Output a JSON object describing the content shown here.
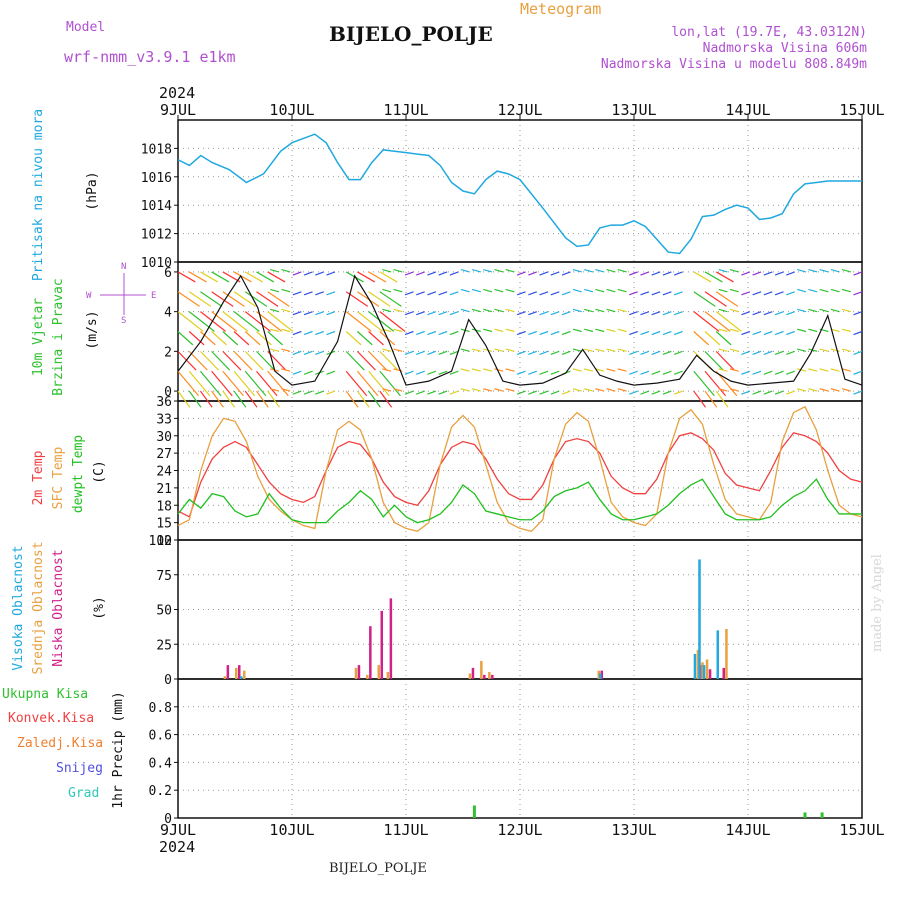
{
  "header": {
    "model_label": "Model",
    "model_name": "wrf-nmm_v3.9.1  e1km",
    "title": "Meteogram",
    "station": "BIJELO_POLJE",
    "coords": "lon,lat (19.7E, 43.0312N)",
    "elevation": "Nadmorska Visina 606m",
    "model_elevation": "Nadmorska Visina u modelu 808.849m",
    "year_top": "2024",
    "year_bottom": "2024",
    "station_footer": "BIJELO_POLJE",
    "credit": "made by Angel"
  },
  "colors": {
    "pressure": "#20a8e0",
    "wind_label": "#30c030",
    "temp_2m": "#f04040",
    "temp_sfc": "#e8a040",
    "dewpoint": "#20c020",
    "cloud_high": "#20a8e0",
    "cloud_mid": "#e8a040",
    "cloud_low": "#d0208a",
    "precip_total": "#30c030",
    "precip_conv": "#f04040",
    "precip_strat": "#f08030",
    "precip_snow": "#5050e0",
    "precip_graupel": "#30c8b8"
  },
  "chart_data": [
    {
      "type": "line",
      "panel": "pressure",
      "ylabel_parts": [
        "Pritisak na nivou mora",
        "(hPa)"
      ],
      "ylim": [
        1010,
        1020
      ],
      "yticks": [
        1010,
        1012,
        1014,
        1016,
        1018
      ],
      "x_days": [
        "9JUL",
        "10JUL",
        "11JUL",
        "12JUL",
        "13JUL",
        "14JUL",
        "15JUL"
      ],
      "x": [
        0,
        0.1,
        0.2,
        0.3,
        0.45,
        0.6,
        0.75,
        0.9,
        1.0,
        1.1,
        1.2,
        1.3,
        1.4,
        1.5,
        1.6,
        1.7,
        1.8,
        1.9,
        2.0,
        2.1,
        2.2,
        2.3,
        2.4,
        2.5,
        2.6,
        2.7,
        2.8,
        2.9,
        3.0,
        3.2,
        3.4,
        3.5,
        3.6,
        3.7,
        3.8,
        3.9,
        4.0,
        4.1,
        4.2,
        4.3,
        4.4,
        4.5,
        4.6,
        4.7,
        4.8,
        4.9,
        5.0,
        5.1,
        5.2,
        5.3,
        5.4,
        5.5,
        5.6,
        5.7,
        5.8,
        5.9,
        6.0
      ],
      "series": [
        {
          "values": [
            1017.2,
            1016.8,
            1017.5,
            1017.0,
            1016.5,
            1015.6,
            1016.2,
            1017.8,
            1018.4,
            1018.7,
            1019.0,
            1018.4,
            1017.0,
            1015.8,
            1015.8,
            1017.0,
            1017.9,
            1017.8,
            1017.7,
            1017.6,
            1017.5,
            1016.8,
            1015.6,
            1015.0,
            1014.8,
            1015.8,
            1016.4,
            1016.2,
            1015.8,
            1013.8,
            1011.7,
            1011.1,
            1011.2,
            1012.4,
            1012.6,
            1012.6,
            1012.9,
            1012.5,
            1011.6,
            1010.7,
            1010.6,
            1011.6,
            1013.2,
            1013.3,
            1013.7,
            1014.0,
            1013.8,
            1013.0,
            1013.1,
            1013.4,
            1014.8,
            1015.5,
            1015.6,
            1015.7,
            1015.7,
            1015.7,
            1015.7
          ]
        }
      ]
    },
    {
      "type": "line",
      "panel": "wind",
      "ylabel_parts": [
        "10m Vjetar",
        "Brzina i Pravac",
        "(m/s)"
      ],
      "compass_labels": [
        "N",
        "S",
        "W",
        "E"
      ],
      "ylim": [
        -0.5,
        6.5
      ],
      "yticks": [
        0,
        2,
        4,
        6
      ],
      "x": [
        0,
        0.2,
        0.4,
        0.55,
        0.7,
        0.85,
        1.0,
        1.2,
        1.4,
        1.55,
        1.7,
        1.85,
        2.0,
        2.2,
        2.4,
        2.55,
        2.7,
        2.85,
        3.0,
        3.2,
        3.4,
        3.55,
        3.7,
        3.85,
        4.0,
        4.2,
        4.4,
        4.55,
        4.7,
        4.85,
        5.0,
        5.2,
        5.4,
        5.55,
        5.7,
        5.85,
        6.0
      ],
      "series": [
        {
          "values": [
            1.0,
            2.5,
            4.5,
            5.8,
            4.2,
            1.0,
            0.3,
            0.5,
            2.5,
            5.8,
            4.4,
            2.5,
            0.3,
            0.5,
            1.0,
            3.6,
            2.3,
            0.5,
            0.3,
            0.4,
            0.9,
            2.1,
            0.8,
            0.5,
            0.3,
            0.4,
            0.6,
            1.8,
            1.0,
            0.5,
            0.3,
            0.4,
            0.5,
            1.9,
            3.8,
            0.6,
            0.3
          ]
        }
      ]
    },
    {
      "type": "line",
      "panel": "temperature",
      "ylabel_parts": [
        "2m Temp",
        "SFC Temp",
        "dewpt Temp",
        "(C)"
      ],
      "ylim": [
        12,
        36
      ],
      "yticks": [
        12,
        15,
        18,
        21,
        24,
        27,
        30,
        33,
        36
      ],
      "x": [
        0,
        0.1,
        0.2,
        0.3,
        0.4,
        0.5,
        0.6,
        0.7,
        0.8,
        0.9,
        1.0,
        1.1,
        1.2,
        1.3,
        1.4,
        1.5,
        1.6,
        1.7,
        1.8,
        1.9,
        2.0,
        2.1,
        2.2,
        2.3,
        2.4,
        2.5,
        2.6,
        2.7,
        2.8,
        2.9,
        3.0,
        3.1,
        3.2,
        3.3,
        3.4,
        3.5,
        3.6,
        3.7,
        3.8,
        3.9,
        4.0,
        4.1,
        4.2,
        4.3,
        4.4,
        4.5,
        4.6,
        4.7,
        4.8,
        4.9,
        5.0,
        5.1,
        5.2,
        5.3,
        5.4,
        5.5,
        5.6,
        5.7,
        5.8,
        5.9,
        6.0
      ],
      "series": [
        {
          "name": "2m Temp",
          "values": [
            17.0,
            16.0,
            22.0,
            26.0,
            28.0,
            29.0,
            28.0,
            25.0,
            22.0,
            20.0,
            19.0,
            18.5,
            19.5,
            24.0,
            28.0,
            29.0,
            28.5,
            26.0,
            22.0,
            19.5,
            18.5,
            18.0,
            20.5,
            25.0,
            28.0,
            29.0,
            28.5,
            26.0,
            22.5,
            20.0,
            19.0,
            19.0,
            21.5,
            26.0,
            29.0,
            29.5,
            29.0,
            27.0,
            23.0,
            21.0,
            20.0,
            20.0,
            22.5,
            27.0,
            30.0,
            30.5,
            29.5,
            27.5,
            23.5,
            21.5,
            21.0,
            20.5,
            24.0,
            28.0,
            30.5,
            30.0,
            29.0,
            27.0,
            24.0,
            22.5,
            22.0
          ]
        },
        {
          "name": "SFC Temp",
          "values": [
            14.5,
            15.5,
            24.0,
            30.0,
            33.0,
            32.5,
            29.0,
            23.0,
            19.0,
            17.0,
            15.5,
            14.5,
            14.0,
            24.0,
            31.0,
            32.5,
            31.0,
            26.0,
            18.5,
            15.0,
            14.0,
            13.5,
            15.0,
            25.0,
            31.5,
            33.5,
            31.5,
            25.0,
            18.5,
            15.0,
            14.0,
            13.5,
            15.5,
            26.0,
            32.0,
            34.0,
            32.5,
            26.0,
            18.5,
            16.0,
            15.0,
            14.5,
            16.5,
            27.0,
            33.0,
            34.5,
            32.0,
            25.0,
            19.0,
            16.5,
            16.0,
            15.5,
            18.5,
            29.0,
            34.0,
            35.0,
            31.0,
            24.0,
            18.0,
            16.5,
            16.0
          ]
        },
        {
          "name": "dewpt Temp",
          "values": [
            16.5,
            19.0,
            17.5,
            20.0,
            19.5,
            17.0,
            16.0,
            16.5,
            20.0,
            17.5,
            15.5,
            15.0,
            15.0,
            15.0,
            17.0,
            18.5,
            20.5,
            19.0,
            16.0,
            18.0,
            16.0,
            15.0,
            15.5,
            16.5,
            18.5,
            21.5,
            20.0,
            17.0,
            16.5,
            16.0,
            15.5,
            15.5,
            17.0,
            19.5,
            20.5,
            21.0,
            22.0,
            19.0,
            16.5,
            15.5,
            15.5,
            16.0,
            16.5,
            18.0,
            20.0,
            21.5,
            22.5,
            19.5,
            16.5,
            15.5,
            15.5,
            15.5,
            16.0,
            18.0,
            19.5,
            20.5,
            22.5,
            19.0,
            16.5,
            16.5,
            16.5
          ]
        }
      ]
    },
    {
      "type": "bar",
      "panel": "clouds",
      "ylabel_parts": [
        "Visoka Oblacnost",
        "Srednja Oblacnost",
        "Niska Oblacnost",
        "(%)"
      ],
      "ylim": [
        0,
        100
      ],
      "yticks": [
        0,
        25,
        50,
        75,
        100
      ],
      "x": [
        0.4,
        0.5,
        0.57,
        1.55,
        1.65,
        1.75,
        1.83,
        2.55,
        2.65,
        2.72,
        3.68,
        3.72,
        4.55,
        4.59,
        4.63,
        4.75,
        4.8
      ],
      "series": [
        {
          "name": "Visoka Oblacnost",
          "values": [
            0,
            0,
            2,
            0,
            0,
            0,
            0,
            0,
            0,
            0,
            0,
            4,
            18,
            86,
            10,
            35,
            0
          ]
        },
        {
          "name": "Srednja Oblacnost",
          "values": [
            2,
            8,
            6,
            8,
            3,
            10,
            5,
            4,
            13,
            5,
            6,
            0,
            21,
            12,
            14,
            0,
            36
          ]
        },
        {
          "name": "Niska Oblacnost",
          "values": [
            10,
            10,
            0,
            10,
            38,
            49,
            58,
            8,
            3,
            3,
            6,
            0,
            10,
            0,
            7,
            8,
            0
          ]
        }
      ]
    },
    {
      "type": "bar",
      "panel": "precipitation",
      "ylabel_parts": [
        "1hr Precip (mm)"
      ],
      "legend": [
        "Ukupna Kisa",
        "Konvek.Kisa",
        "Zaledj.Kisa",
        "Snijeg",
        "Grad"
      ],
      "ylim": [
        0,
        1.0
      ],
      "yticks": [
        0,
        0.2,
        0.4,
        0.6,
        0.8
      ],
      "x": [
        2.6,
        5.5,
        5.65
      ],
      "series": [
        {
          "name": "Ukupna Kisa",
          "values": [
            0.09,
            0.04,
            0.04
          ]
        }
      ]
    }
  ]
}
